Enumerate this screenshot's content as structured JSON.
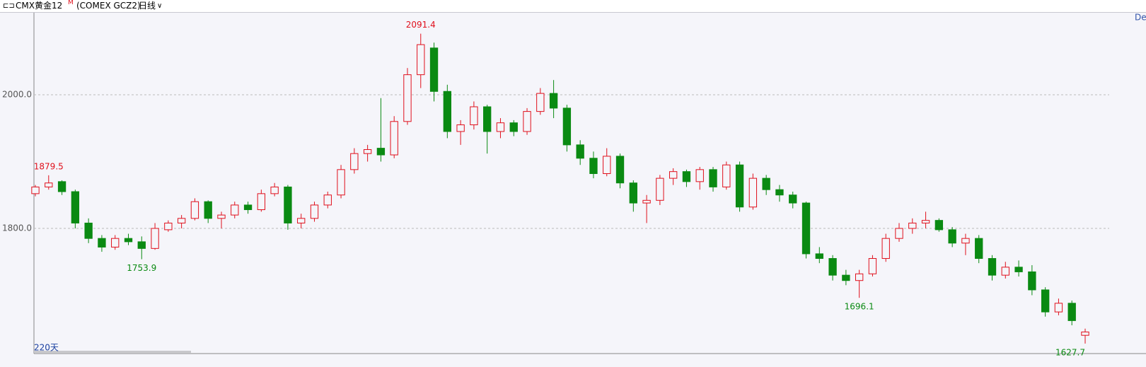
{
  "header": {
    "symbol": "CMX黄金12",
    "badge": "M",
    "code": "(COMEX GCZ2)",
    "period": "日线",
    "corner": "Del"
  },
  "footer": {
    "count": "220天"
  },
  "chart_data": {
    "type": "candlestick",
    "ylim": [
      1612.7,
      2123.8
    ],
    "yticks": [
      {
        "value": 1800,
        "label": "1800.0"
      },
      {
        "value": 2000,
        "label": "2000.0"
      }
    ],
    "grid": true,
    "up_color": "#e0101c",
    "down_color": "#0a8a12",
    "series": {
      "open": [
        1852,
        1862,
        1870,
        1855,
        1808,
        1785,
        1772,
        1785,
        1780,
        1770,
        1798,
        1808,
        1815,
        1840,
        1815,
        1820,
        1835,
        1828,
        1852,
        1862,
        1808,
        1815,
        1835,
        1850,
        1888,
        1912,
        1920,
        1910,
        1960,
        2030,
        2070,
        2005,
        1945,
        1955,
        1982,
        1945,
        1958,
        1945,
        1975,
        2002,
        1980,
        1925,
        1905,
        1882,
        1908,
        1868,
        1838,
        1842,
        1875,
        1885,
        1870,
        1888,
        1862,
        1895,
        1832,
        1875,
        1858,
        1850,
        1838,
        1762,
        1755,
        1730,
        1722,
        1732,
        1755,
        1785,
        1800,
        1808,
        1812,
        1798,
        1778,
        1785,
        1755,
        1730,
        1742,
        1735,
        1708,
        1675,
        1688,
        1640
      ],
      "high": [
        1865,
        1879.5,
        1872,
        1858,
        1815,
        1790,
        1790,
        1792,
        1788,
        1808,
        1812,
        1820,
        1845,
        1842,
        1825,
        1840,
        1840,
        1858,
        1868,
        1865,
        1822,
        1840,
        1855,
        1895,
        1920,
        1925,
        1995,
        1968,
        2040,
        2091.4,
        2078,
        2015,
        1962,
        1990,
        1985,
        1965,
        1962,
        1980,
        2010,
        2022,
        1985,
        1932,
        1915,
        1920,
        1912,
        1872,
        1850,
        1880,
        1890,
        1888,
        1892,
        1892,
        1900,
        1900,
        1882,
        1880,
        1865,
        1855,
        1840,
        1772,
        1760,
        1738,
        1738,
        1760,
        1792,
        1808,
        1815,
        1825,
        1815,
        1802,
        1792,
        1790,
        1760,
        1750,
        1752,
        1745,
        1712,
        1695,
        1692,
        1650
      ],
      "low": [
        1848,
        1858,
        1850,
        1800,
        1778,
        1765,
        1768,
        1775,
        1753.9,
        1768,
        1795,
        1800,
        1812,
        1808,
        1800,
        1815,
        1822,
        1825,
        1848,
        1798,
        1800,
        1810,
        1830,
        1845,
        1882,
        1900,
        1900,
        1905,
        1955,
        2010,
        1990,
        1935,
        1925,
        1948,
        1912,
        1935,
        1938,
        1940,
        1970,
        1965,
        1915,
        1895,
        1875,
        1878,
        1860,
        1825,
        1808,
        1835,
        1865,
        1862,
        1858,
        1855,
        1858,
        1825,
        1828,
        1850,
        1840,
        1830,
        1755,
        1748,
        1722,
        1715,
        1696.1,
        1728,
        1750,
        1780,
        1792,
        1800,
        1795,
        1772,
        1760,
        1748,
        1722,
        1725,
        1728,
        1700,
        1668,
        1670,
        1655,
        1627.7
      ],
      "close": [
        1862,
        1868,
        1855,
        1808,
        1785,
        1772,
        1785,
        1780,
        1770,
        1800,
        1808,
        1815,
        1840,
        1815,
        1820,
        1835,
        1828,
        1852,
        1862,
        1808,
        1815,
        1835,
        1850,
        1888,
        1912,
        1918,
        1910,
        1960,
        2030,
        2075,
        2005,
        1945,
        1955,
        1982,
        1945,
        1958,
        1945,
        1975,
        2002,
        1980,
        1925,
        1905,
        1882,
        1908,
        1868,
        1838,
        1842,
        1875,
        1885,
        1870,
        1888,
        1862,
        1895,
        1832,
        1875,
        1858,
        1850,
        1838,
        1762,
        1755,
        1730,
        1722,
        1732,
        1755,
        1785,
        1800,
        1808,
        1812,
        1798,
        1778,
        1785,
        1755,
        1730,
        1742,
        1735,
        1708,
        1675,
        1688,
        1662,
        1645
      ]
    }
  }
}
